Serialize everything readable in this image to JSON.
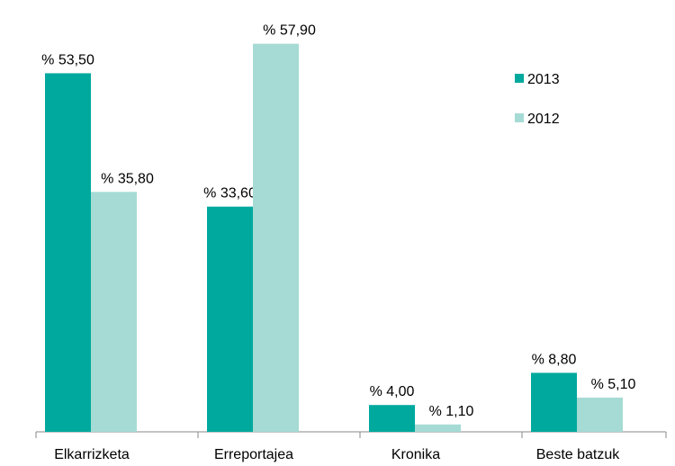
{
  "chart_data": {
    "type": "bar",
    "categories": [
      "Elkarrizketa",
      "Erreportajea",
      "Kronika",
      "Beste batzuk"
    ],
    "series": [
      {
        "name": "2013",
        "color": "#00a99d",
        "values": [
          53.5,
          33.6,
          4.0,
          8.8
        ],
        "value_labels": [
          "% 53,50",
          "% 33,60",
          "% 4,00",
          "% 8,80"
        ]
      },
      {
        "name": "2012",
        "color": "#a6dbd5",
        "values": [
          35.8,
          57.9,
          1.1,
          5.1
        ],
        "value_labels": [
          "% 35,80",
          "% 57,90",
          "% 1,10",
          "% 5,10"
        ]
      }
    ],
    "legend": "upper right"
  }
}
